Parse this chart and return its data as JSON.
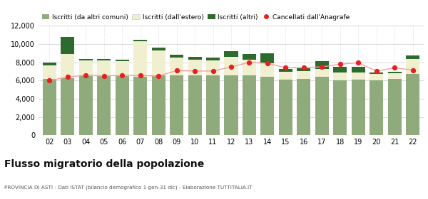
{
  "years": [
    "02",
    "03",
    "04",
    "05",
    "06",
    "07",
    "08",
    "09",
    "10",
    "11",
    "12",
    "13",
    "14",
    "15",
    "16",
    "17",
    "18",
    "19",
    "20",
    "21",
    "22"
  ],
  "iscritti_altri_comuni": [
    6200,
    6300,
    6500,
    6500,
    6500,
    6400,
    6600,
    6600,
    6600,
    6600,
    6600,
    6600,
    6400,
    6100,
    6200,
    6400,
    6000,
    6100,
    6000,
    6200,
    6700
  ],
  "iscritti_estero": [
    1450,
    2600,
    1700,
    1700,
    1600,
    3900,
    2700,
    1900,
    1700,
    1600,
    2000,
    1700,
    1500,
    900,
    850,
    900,
    850,
    750,
    700,
    600,
    1700
  ],
  "iscritti_altri": [
    350,
    1850,
    200,
    200,
    200,
    200,
    300,
    300,
    300,
    300,
    600,
    600,
    1100,
    300,
    300,
    800,
    700,
    650,
    150,
    150,
    350
  ],
  "cancellati": [
    6000,
    6400,
    6600,
    6500,
    6600,
    6550,
    6500,
    7100,
    7050,
    7050,
    7500,
    8000,
    7900,
    7400,
    7450,
    7500,
    7800,
    7950,
    7050,
    7400,
    7150
  ],
  "color_altri_comuni": "#8faa7b",
  "color_estero": "#f0f0d0",
  "color_altri": "#2d6a2d",
  "color_cancellati": "#e82020",
  "color_cancellati_line": "#f5a0a0",
  "ylim": [
    0,
    12000
  ],
  "yticks": [
    0,
    2000,
    4000,
    6000,
    8000,
    10000,
    12000
  ],
  "legend_labels": [
    "Iscritti (da altri comuni)",
    "Iscritti (dall'estero)",
    "Iscritti (altri)",
    "Cancellati dall'Anagrafe"
  ],
  "title": "Flusso migratorio della popolazione",
  "subtitle": "PROVINCIA DI ASTI - Dati ISTAT (bilancio demografico 1 gen-31 dic) - Elaborazione TUTTITALIA.IT",
  "bg_color": "#ffffff",
  "grid_color": "#cccccc"
}
